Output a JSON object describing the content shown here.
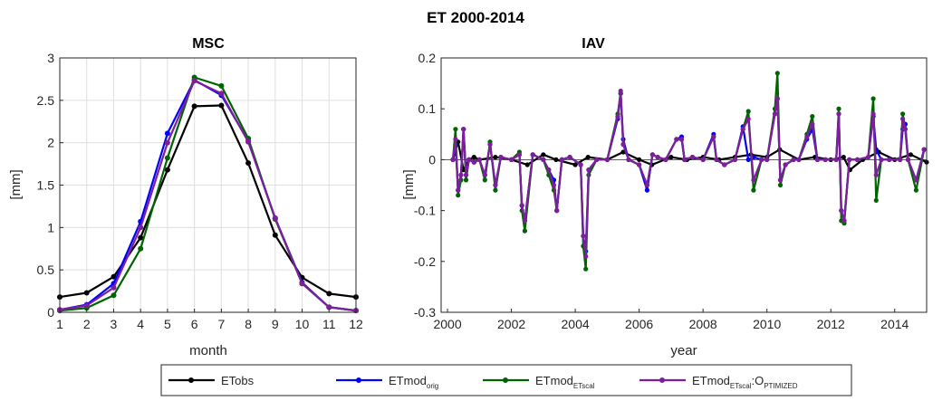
{
  "figure": {
    "suptitle": "ET 2000-2014",
    "legend": [
      {
        "name": "ETobs",
        "color": "#000000"
      },
      {
        "name": "ETmod",
        "sub": "orig",
        "color": "#0000ff"
      },
      {
        "name": "ETmod",
        "sub": "ETscal",
        "color": "#006400"
      },
      {
        "name": "ETmod",
        "sub": "ETscal",
        "tail": ":O",
        "tailsub": "PTIMIZED",
        "color": "#7e1e9c"
      }
    ],
    "legend_placement": "bottom-center"
  },
  "chart_data": [
    {
      "type": "line",
      "title": "MSC",
      "xlabel": "month",
      "ylabel": "[mm]",
      "xlim": [
        1,
        12
      ],
      "ylim": [
        0,
        3
      ],
      "xticks": [
        1,
        2,
        3,
        4,
        5,
        6,
        7,
        8,
        9,
        10,
        11,
        12
      ],
      "yticks": [
        0,
        0.5,
        1,
        1.5,
        2,
        2.5,
        3
      ],
      "ytick_labels": [
        "0",
        "0.5",
        "1",
        "1.5",
        "2",
        "2.5",
        "3"
      ],
      "grid": true,
      "x": [
        1,
        2,
        3,
        4,
        5,
        6,
        7,
        8,
        9,
        10,
        11,
        12
      ],
      "series": [
        {
          "name": "ETobs",
          "color": "#000000",
          "values": [
            0.18,
            0.23,
            0.42,
            0.88,
            1.68,
            2.43,
            2.44,
            1.76,
            0.91,
            0.41,
            0.22,
            0.18
          ]
        },
        {
          "name": "ETmod_orig",
          "color": "#0000ff",
          "values": [
            0.03,
            0.09,
            0.34,
            1.07,
            2.11,
            2.74,
            2.56,
            2.02,
            1.11,
            0.35,
            0.06,
            0.02
          ]
        },
        {
          "name": "ETmod_ETscal",
          "color": "#006400",
          "values": [
            0.02,
            0.05,
            0.2,
            0.75,
            1.82,
            2.77,
            2.67,
            2.05,
            1.1,
            0.34,
            0.06,
            0.02
          ]
        },
        {
          "name": "ETmod_ETscal:OPTIMIZED",
          "color": "#7e1e9c",
          "values": [
            0.03,
            0.08,
            0.29,
            1.0,
            2.0,
            2.73,
            2.58,
            2.01,
            1.11,
            0.34,
            0.06,
            0.02
          ]
        }
      ]
    },
    {
      "type": "line",
      "title": "IAV",
      "xlabel": "year",
      "ylabel": "[mm]",
      "xlim": [
        1999.8,
        2015.0
      ],
      "ylim": [
        -0.3,
        0.2
      ],
      "xticks": [
        2000,
        2002,
        2004,
        2006,
        2008,
        2010,
        2012,
        2014
      ],
      "yticks": [
        -0.3,
        -0.2,
        -0.1,
        0,
        0.1,
        0.2
      ],
      "ytick_labels": [
        "-0.3",
        "-0.2",
        "-0.1",
        "0",
        "0.1",
        "0.2"
      ],
      "grid": false,
      "series": [
        {
          "name": "ETobs",
          "color": "#000000",
          "x": [
            2000.17,
            2000.33,
            2000.5,
            2000.67,
            2000.83,
            2001.0,
            2001.5,
            2002.0,
            2002.5,
            2003.0,
            2003.4,
            2004.0,
            2004.4,
            2005.0,
            2005.5,
            2006.0,
            2006.4,
            2007.0,
            2007.5,
            2008.0,
            2008.5,
            2009.0,
            2009.5,
            2010.0,
            2010.4,
            2011.0,
            2011.5,
            2012.0,
            2012.4,
            2012.6,
            2013.0,
            2013.5,
            2014.0,
            2014.5,
            2015.0
          ],
          "values": [
            0.0,
            0.035,
            -0.02,
            0.0,
            0.005,
            0.0,
            0.005,
            0.0,
            -0.01,
            0.01,
            0.0,
            -0.01,
            0.005,
            0.0,
            0.015,
            0.0,
            -0.01,
            0.005,
            0.0,
            0.005,
            0.0,
            0.005,
            0.01,
            0.005,
            0.02,
            0.0,
            0.005,
            0.0,
            0.005,
            -0.02,
            0.0,
            0.015,
            0.0,
            0.01,
            -0.005
          ]
        },
        {
          "name": "ETmod_orig",
          "color": "#0000ff",
          "x": [
            2000.17,
            2000.25,
            2000.33,
            2000.42,
            2000.5,
            2000.58,
            2000.67,
            2000.83,
            2001.0,
            2001.17,
            2001.33,
            2001.5,
            2001.67,
            2002.0,
            2002.25,
            2002.33,
            2002.42,
            2002.67,
            2003.0,
            2003.17,
            2003.33,
            2003.42,
            2003.58,
            2003.83,
            2004.17,
            2004.25,
            2004.33,
            2004.42,
            2004.67,
            2005.0,
            2005.33,
            2005.42,
            2005.5,
            2005.67,
            2006.0,
            2006.25,
            2006.42,
            2006.58,
            2006.83,
            2007.17,
            2007.33,
            2007.42,
            2007.67,
            2008.0,
            2008.33,
            2008.42,
            2008.67,
            2009.0,
            2009.25,
            2009.42,
            2009.58,
            2009.83,
            2010.0,
            2010.25,
            2010.33,
            2010.42,
            2010.58,
            2010.83,
            2011.0,
            2011.25,
            2011.42,
            2011.58,
            2011.83,
            2012.17,
            2012.25,
            2012.33,
            2012.42,
            2012.58,
            2012.83,
            2013.17,
            2013.33,
            2013.42,
            2013.58,
            2013.83,
            2014.17,
            2014.25,
            2014.33,
            2014.42,
            2014.67,
            2014.92
          ],
          "values": [
            0.0,
            0.03,
            -0.06,
            -0.03,
            0.06,
            -0.03,
            0.0,
            -0.005,
            0.0,
            -0.03,
            0.03,
            -0.05,
            0.005,
            0.0,
            0.01,
            -0.09,
            -0.12,
            0.01,
            0.0,
            -0.02,
            -0.04,
            -0.1,
            0.0,
            0.005,
            -0.01,
            -0.15,
            -0.18,
            -0.02,
            0.0,
            0.0,
            0.08,
            0.13,
            0.04,
            0.0,
            -0.01,
            -0.06,
            0.01,
            0.005,
            0.0,
            0.04,
            0.045,
            0.0,
            0.005,
            0.0,
            0.05,
            0.0,
            -0.01,
            0.0,
            0.065,
            0.0,
            0.005,
            0.0,
            0.0,
            0.09,
            0.12,
            -0.04,
            -0.01,
            0.0,
            0.0,
            0.04,
            0.06,
            0.0,
            0.0,
            0.0,
            0.09,
            -0.1,
            -0.12,
            0.0,
            0.0,
            0.005,
            0.085,
            0.02,
            0.0,
            0.0,
            0.0,
            0.06,
            0.07,
            0.0,
            -0.04,
            0.02
          ]
        },
        {
          "name": "ETmod_ETscal",
          "color": "#006400",
          "x": [
            2000.17,
            2000.25,
            2000.33,
            2000.42,
            2000.5,
            2000.58,
            2000.67,
            2000.83,
            2001.0,
            2001.17,
            2001.33,
            2001.5,
            2001.67,
            2002.0,
            2002.25,
            2002.33,
            2002.42,
            2002.67,
            2003.0,
            2003.17,
            2003.33,
            2003.42,
            2003.58,
            2003.83,
            2004.17,
            2004.25,
            2004.33,
            2004.42,
            2004.67,
            2005.0,
            2005.33,
            2005.42,
            2005.5,
            2005.67,
            2006.0,
            2006.25,
            2006.42,
            2006.58,
            2006.83,
            2007.17,
            2007.33,
            2007.42,
            2007.67,
            2008.0,
            2008.33,
            2008.42,
            2008.67,
            2009.0,
            2009.25,
            2009.42,
            2009.58,
            2009.83,
            2010.0,
            2010.25,
            2010.33,
            2010.42,
            2010.58,
            2010.83,
            2011.0,
            2011.25,
            2011.42,
            2011.58,
            2011.83,
            2012.17,
            2012.25,
            2012.33,
            2012.42,
            2012.58,
            2012.83,
            2013.17,
            2013.33,
            2013.42,
            2013.58,
            2013.83,
            2014.17,
            2014.25,
            2014.33,
            2014.42,
            2014.67,
            2014.92
          ],
          "values": [
            0.0,
            0.06,
            -0.07,
            -0.04,
            0.06,
            -0.04,
            0.0,
            -0.005,
            0.0,
            -0.04,
            0.035,
            -0.06,
            0.005,
            0.0,
            0.015,
            -0.1,
            -0.14,
            0.01,
            0.0,
            -0.03,
            -0.06,
            -0.1,
            0.0,
            0.005,
            -0.01,
            -0.17,
            -0.215,
            -0.03,
            0.0,
            0.0,
            0.09,
            0.13,
            0.03,
            0.0,
            -0.01,
            -0.05,
            0.01,
            0.005,
            0.0,
            0.04,
            0.04,
            0.0,
            0.005,
            0.0,
            0.045,
            0.0,
            -0.01,
            0.0,
            0.06,
            0.095,
            -0.06,
            0.0,
            0.0,
            0.1,
            0.17,
            -0.05,
            -0.01,
            0.0,
            0.0,
            0.05,
            0.085,
            0.0,
            0.0,
            0.0,
            0.1,
            -0.12,
            -0.125,
            0.0,
            0.0,
            0.005,
            0.12,
            -0.08,
            0.0,
            0.0,
            0.0,
            0.09,
            0.06,
            0.0,
            -0.06,
            0.02
          ]
        },
        {
          "name": "ETmod_ETscal:OPTIMIZED",
          "color": "#7e1e9c",
          "x": [
            2000.17,
            2000.25,
            2000.33,
            2000.42,
            2000.5,
            2000.58,
            2000.67,
            2000.83,
            2001.0,
            2001.17,
            2001.33,
            2001.5,
            2001.67,
            2002.0,
            2002.25,
            2002.33,
            2002.42,
            2002.67,
            2003.0,
            2003.17,
            2003.33,
            2003.42,
            2003.58,
            2003.83,
            2004.17,
            2004.25,
            2004.33,
            2004.42,
            2004.67,
            2005.0,
            2005.33,
            2005.42,
            2005.5,
            2005.67,
            2006.0,
            2006.25,
            2006.42,
            2006.58,
            2006.83,
            2007.17,
            2007.33,
            2007.42,
            2007.67,
            2008.0,
            2008.33,
            2008.42,
            2008.67,
            2009.0,
            2009.25,
            2009.42,
            2009.58,
            2009.83,
            2010.0,
            2010.25,
            2010.33,
            2010.42,
            2010.58,
            2010.83,
            2011.0,
            2011.25,
            2011.42,
            2011.58,
            2011.83,
            2012.17,
            2012.25,
            2012.33,
            2012.42,
            2012.58,
            2012.83,
            2013.17,
            2013.33,
            2013.42,
            2013.58,
            2013.83,
            2014.17,
            2014.25,
            2014.33,
            2014.42,
            2014.67,
            2014.92
          ],
          "values": [
            0.0,
            0.04,
            -0.06,
            -0.03,
            0.06,
            -0.03,
            0.0,
            -0.005,
            0.0,
            -0.03,
            0.03,
            -0.05,
            0.005,
            0.0,
            0.01,
            -0.09,
            -0.12,
            0.01,
            0.0,
            -0.02,
            -0.05,
            -0.1,
            0.0,
            0.005,
            -0.01,
            -0.15,
            -0.19,
            -0.02,
            0.0,
            0.0,
            0.085,
            0.135,
            0.03,
            0.0,
            -0.01,
            -0.05,
            0.01,
            0.005,
            0.0,
            0.04,
            0.04,
            0.0,
            0.005,
            0.0,
            0.045,
            0.0,
            -0.01,
            0.0,
            0.06,
            0.08,
            -0.04,
            0.0,
            0.0,
            0.09,
            0.12,
            -0.04,
            -0.01,
            0.0,
            0.0,
            0.045,
            0.07,
            0.0,
            0.0,
            0.0,
            0.09,
            -0.1,
            -0.12,
            0.0,
            0.0,
            0.005,
            0.09,
            -0.03,
            0.0,
            0.0,
            0.0,
            0.08,
            0.06,
            0.0,
            -0.04,
            0.02
          ]
        }
      ]
    }
  ]
}
